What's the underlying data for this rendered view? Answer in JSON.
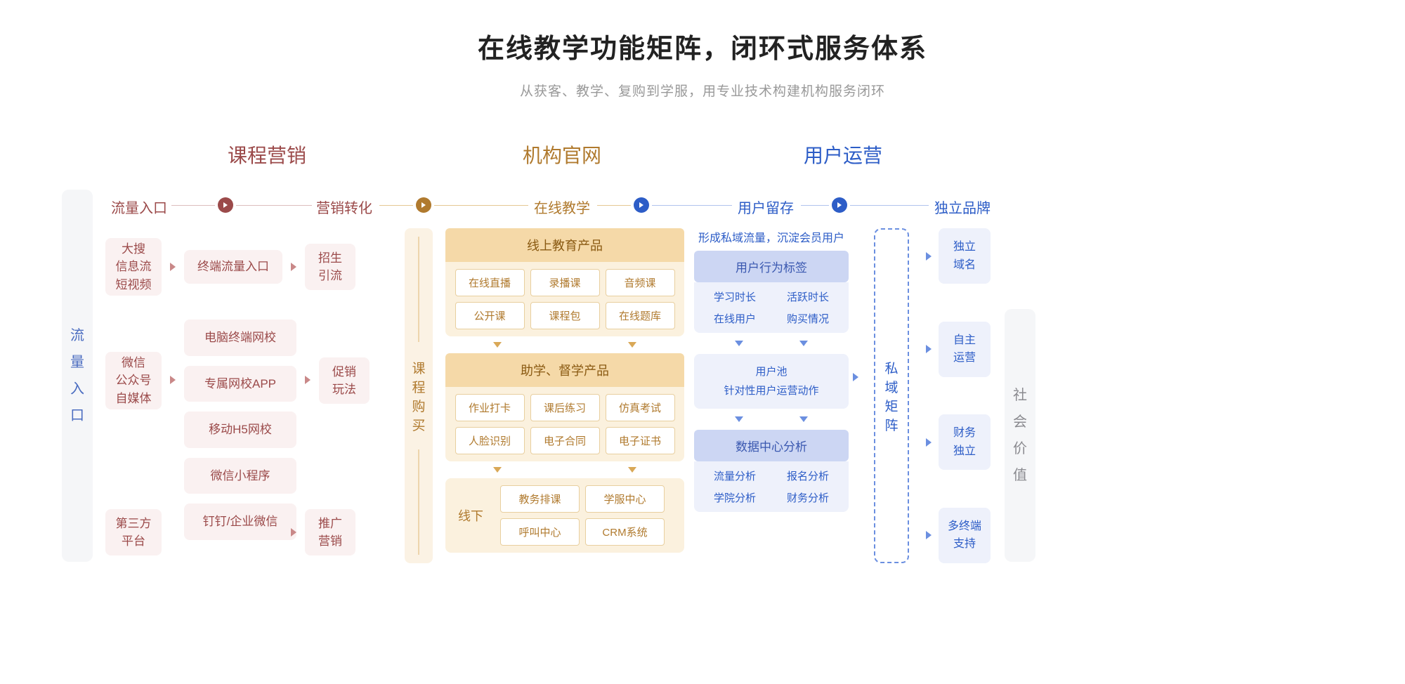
{
  "title": "在线教学功能矩阵，闭环式服务体系",
  "subtitle": "从获客、教学、复购到学服，用专业技术构建机构服务闭环",
  "sections": {
    "red": "课程营销",
    "org": "机构官网",
    "blu": "用户运营"
  },
  "stages": {
    "s1": "流量入口",
    "s2": "营销转化",
    "s3": "在线教学",
    "s4": "用户留存",
    "s5": "独立品牌"
  },
  "pillars": {
    "left": "流量入口",
    "right": "社会价值"
  },
  "red": {
    "r1": {
      "a": "大搜\n信息流\n短视频",
      "b": "终端流量入口",
      "c": "招生\n引流"
    },
    "r2": {
      "a": "微信\n公众号\n自媒体",
      "list": [
        "电脑终端网校",
        "专属网校APP",
        "移动H5网校",
        "微信小程序",
        "钉钉/企业微信"
      ],
      "c": "促销\n玩法"
    },
    "r3": {
      "a": "第三方\n平台",
      "c": "推广\n营销"
    }
  },
  "orange": {
    "pillar": "课程购买",
    "sec1": {
      "head": "线上教育产品",
      "cells": [
        "在线直播",
        "录播课",
        "音频课",
        "公开课",
        "课程包",
        "在线题库"
      ]
    },
    "sec2": {
      "head": "助学、督学产品",
      "cells": [
        "作业打卡",
        "课后练习",
        "仿真考试",
        "人脸识别",
        "电子合同",
        "电子证书"
      ]
    },
    "offline": {
      "lbl": "线下",
      "cells": [
        "教务排课",
        "学服中心",
        "呼叫中心",
        "CRM系统"
      ]
    }
  },
  "blue": {
    "tag": "形成私域流量，沉淀会员用户",
    "s1": {
      "head": "用户行为标签",
      "cells": [
        "学习时长",
        "活跃时长",
        "在线用户",
        "购买情况"
      ]
    },
    "pool": {
      "l1": "用户池",
      "l2": "针对性用户运营动作"
    },
    "s2": {
      "head": "数据中心分析",
      "cells": [
        "流量分析",
        "报名分析",
        "学院分析",
        "财务分析"
      ]
    },
    "dash": "私域矩阵",
    "right": [
      "独立\n域名",
      "自主\n运营",
      "财务\n独立",
      "多终端\n支持"
    ]
  },
  "colors": {
    "red": "#9b4a4a",
    "org": "#b07a2e",
    "blu": "#2d5dc7"
  }
}
